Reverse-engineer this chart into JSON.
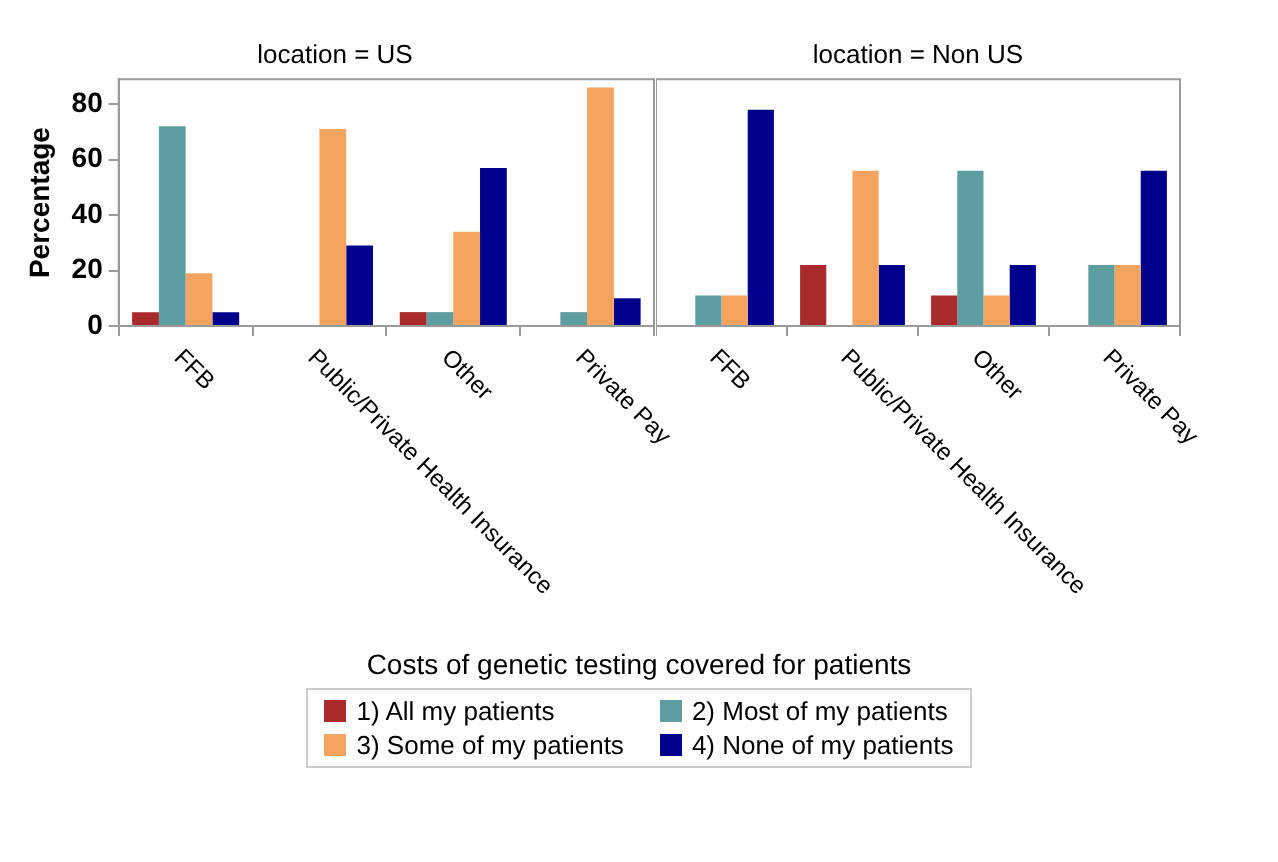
{
  "chart_data": [
    {
      "type": "bar",
      "title": "location = US",
      "ylabel": "Percentage",
      "categories": [
        "FFB",
        "Public/Private Health Insurance",
        "Other",
        "Private Pay"
      ],
      "ylim": [
        0,
        89
      ],
      "yticks": [
        0,
        20,
        40,
        60,
        80
      ],
      "grid": false,
      "legend": "bottom",
      "legend_title": "Costs of genetic testing covered for patients",
      "series": [
        {
          "name": "1) All my patients",
          "color": "#a82a2a",
          "values": [
            5,
            0,
            5,
            0
          ]
        },
        {
          "name": "2) Most of my patients",
          "color": "#5f9ea0",
          "values": [
            72,
            0,
            5,
            5
          ]
        },
        {
          "name": "3) Some of my patients",
          "color": "#f4a460",
          "values": [
            19,
            71,
            34,
            86
          ]
        },
        {
          "name": "4) None of my patients",
          "color": "#00008b",
          "values": [
            5,
            29,
            57,
            10
          ]
        }
      ]
    },
    {
      "type": "bar",
      "title": "location = Non US",
      "categories": [
        "FFB",
        "Public/Private Health Insurance",
        "Other",
        "Private Pay"
      ],
      "ylim": [
        0,
        89
      ],
      "yticks": [
        0,
        20,
        40,
        60,
        80
      ],
      "tick_labels": "x",
      "grid": false,
      "series": [
        {
          "color": "#a82a2a",
          "values": [
            0,
            22,
            11,
            0
          ]
        },
        {
          "color": "#5f9ea0",
          "values": [
            11,
            0,
            56,
            22
          ]
        },
        {
          "color": "#f4a460",
          "values": [
            11,
            56,
            11,
            22
          ]
        },
        {
          "color": "#00008b",
          "values": [
            78,
            22,
            22,
            56
          ]
        }
      ]
    }
  ]
}
